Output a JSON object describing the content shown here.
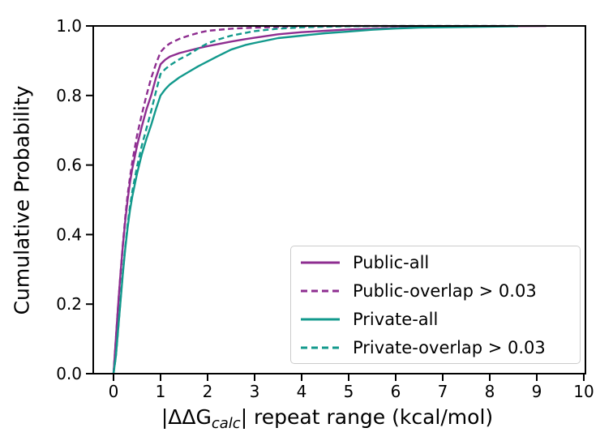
{
  "figure": {
    "background": "#ffffff",
    "axis_color": "#000000",
    "legend_border_color": "#cccccc"
  },
  "chart_data": {
    "type": "line",
    "subtype": "empirical-cdf",
    "title": "",
    "xlabel": {
      "prefix": "|ΔΔG",
      "subscript": "calc",
      "suffix": "| repeat range (kcal/mol)"
    },
    "ylabel": "Cumulative Probability",
    "xlim": [
      -0.45,
      10.05
    ],
    "ylim": [
      0.0,
      1.0
    ],
    "xticks": [
      0,
      1,
      2,
      3,
      4,
      5,
      6,
      7,
      8,
      9,
      10
    ],
    "xtick_labels": [
      "0",
      "1",
      "2",
      "3",
      "4",
      "5",
      "6",
      "7",
      "8",
      "9",
      "10"
    ],
    "yticks": [
      0.0,
      0.2,
      0.4,
      0.6,
      0.8,
      1.0
    ],
    "ytick_labels": [
      "0.0",
      "0.2",
      "0.4",
      "0.6",
      "0.8",
      "1.0"
    ],
    "grid": false,
    "legend_position": "lower right",
    "series": [
      {
        "name": "Public-all",
        "color": "#8e2d90",
        "linestyle": "solid",
        "x": [
          0,
          0.05,
          0.1,
          0.15,
          0.2,
          0.25,
          0.3,
          0.35,
          0.4,
          0.5,
          0.6,
          0.7,
          0.8,
          0.9,
          1.0,
          1.1,
          1.2,
          1.4,
          1.6,
          1.8,
          2.0,
          2.2,
          2.5,
          2.8,
          3.0,
          3.5,
          4.0,
          4.5,
          5.0,
          5.5,
          6.0,
          6.5,
          7.0,
          7.5,
          8.0,
          8.6,
          9.2
        ],
        "y": [
          0,
          0.1,
          0.2,
          0.29,
          0.37,
          0.44,
          0.5,
          0.55,
          0.59,
          0.655,
          0.71,
          0.76,
          0.8,
          0.85,
          0.89,
          0.903,
          0.912,
          0.922,
          0.929,
          0.936,
          0.942,
          0.947,
          0.955,
          0.962,
          0.966,
          0.976,
          0.982,
          0.986,
          0.99,
          0.992,
          0.994,
          0.996,
          0.997,
          0.998,
          0.999,
          0.9995,
          1.0
        ]
      },
      {
        "name": "Public-overlap > 0.03",
        "color": "#8e2d90",
        "linestyle": "dashed",
        "x": [
          0,
          0.05,
          0.1,
          0.15,
          0.2,
          0.25,
          0.3,
          0.35,
          0.4,
          0.5,
          0.6,
          0.7,
          0.8,
          0.9,
          1.0,
          1.1,
          1.2,
          1.4,
          1.6,
          1.8,
          2.0,
          2.5,
          3.0,
          3.5,
          4.0,
          4.5,
          5.0,
          6.0,
          7.0,
          8.0,
          8.6
        ],
        "y": [
          0,
          0.1,
          0.2,
          0.29,
          0.375,
          0.45,
          0.515,
          0.565,
          0.61,
          0.685,
          0.745,
          0.8,
          0.85,
          0.89,
          0.925,
          0.94,
          0.95,
          0.963,
          0.972,
          0.98,
          0.986,
          0.992,
          0.995,
          0.997,
          0.9985,
          0.9992,
          1.0,
          1.0,
          1.0,
          1.0,
          1.0
        ]
      },
      {
        "name": "Private-all",
        "color": "#12998c",
        "linestyle": "solid",
        "x": [
          0,
          0.05,
          0.1,
          0.15,
          0.2,
          0.25,
          0.3,
          0.35,
          0.4,
          0.5,
          0.6,
          0.7,
          0.8,
          0.9,
          1.0,
          1.1,
          1.2,
          1.4,
          1.6,
          1.8,
          2.0,
          2.2,
          2.5,
          2.8,
          3.0,
          3.5,
          4.0,
          4.5,
          5.0,
          5.5,
          6.0,
          6.5,
          7.0,
          7.5,
          8.0,
          8.6
        ],
        "y": [
          0,
          0.05,
          0.13,
          0.21,
          0.29,
          0.36,
          0.42,
          0.47,
          0.51,
          0.575,
          0.63,
          0.675,
          0.715,
          0.76,
          0.8,
          0.818,
          0.832,
          0.852,
          0.868,
          0.884,
          0.898,
          0.912,
          0.932,
          0.945,
          0.951,
          0.965,
          0.972,
          0.979,
          0.984,
          0.989,
          0.9925,
          0.995,
          0.996,
          0.997,
          0.998,
          0.999
        ]
      },
      {
        "name": "Private-overlap > 0.03",
        "color": "#12998c",
        "linestyle": "dashed",
        "x": [
          0,
          0.05,
          0.1,
          0.15,
          0.2,
          0.25,
          0.3,
          0.35,
          0.4,
          0.5,
          0.6,
          0.7,
          0.8,
          0.9,
          1.0,
          1.1,
          1.2,
          1.4,
          1.6,
          1.8,
          2.0,
          2.2,
          2.5,
          3.0,
          3.5,
          4.0,
          4.5,
          5.0,
          6.0,
          7.0,
          8.6
        ],
        "y": [
          0,
          0.05,
          0.13,
          0.215,
          0.295,
          0.365,
          0.43,
          0.48,
          0.525,
          0.595,
          0.655,
          0.705,
          0.755,
          0.81,
          0.862,
          0.876,
          0.887,
          0.904,
          0.918,
          0.935,
          0.95,
          0.96,
          0.972,
          0.985,
          0.992,
          0.996,
          0.998,
          0.999,
          1.0,
          1.0,
          1.0
        ]
      }
    ]
  }
}
